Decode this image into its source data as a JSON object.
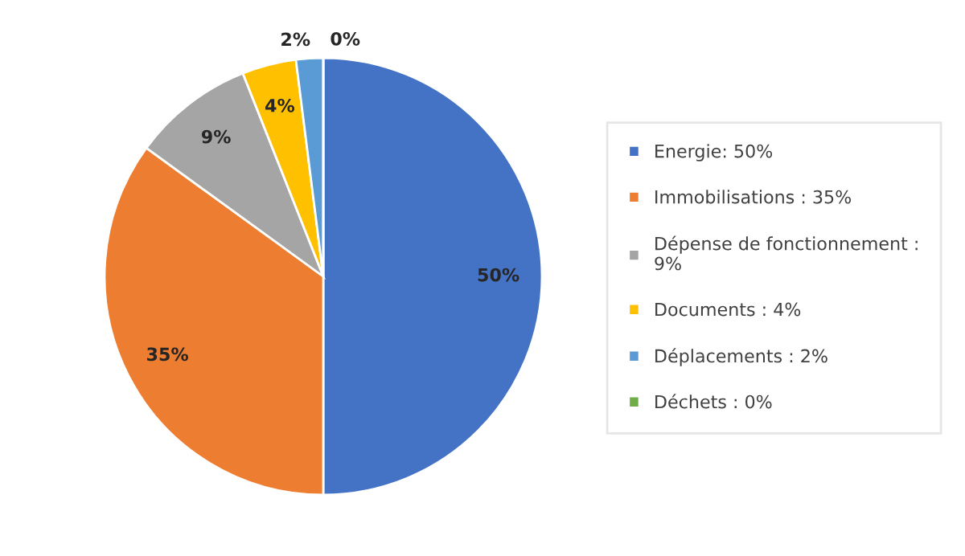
{
  "chart_data": {
    "type": "pie",
    "categories": [
      "Energie: 50%",
      "Immobilisations : 35%",
      "Dépense de fonctionnement :\n9%",
      "Documents : 4%",
      "Déplacements : 2%",
      "Déchets : 0%"
    ],
    "values": [
      50,
      35,
      9,
      4,
      2,
      0
    ],
    "colors": [
      "#4472c4",
      "#ed7d31",
      "#a5a5a5",
      "#ffc000",
      "#5b9bd5",
      "#70ad47"
    ],
    "value_labels": [
      "50%",
      "35%",
      "9%",
      "4%",
      "2%",
      "0%"
    ],
    "legend": "right"
  }
}
